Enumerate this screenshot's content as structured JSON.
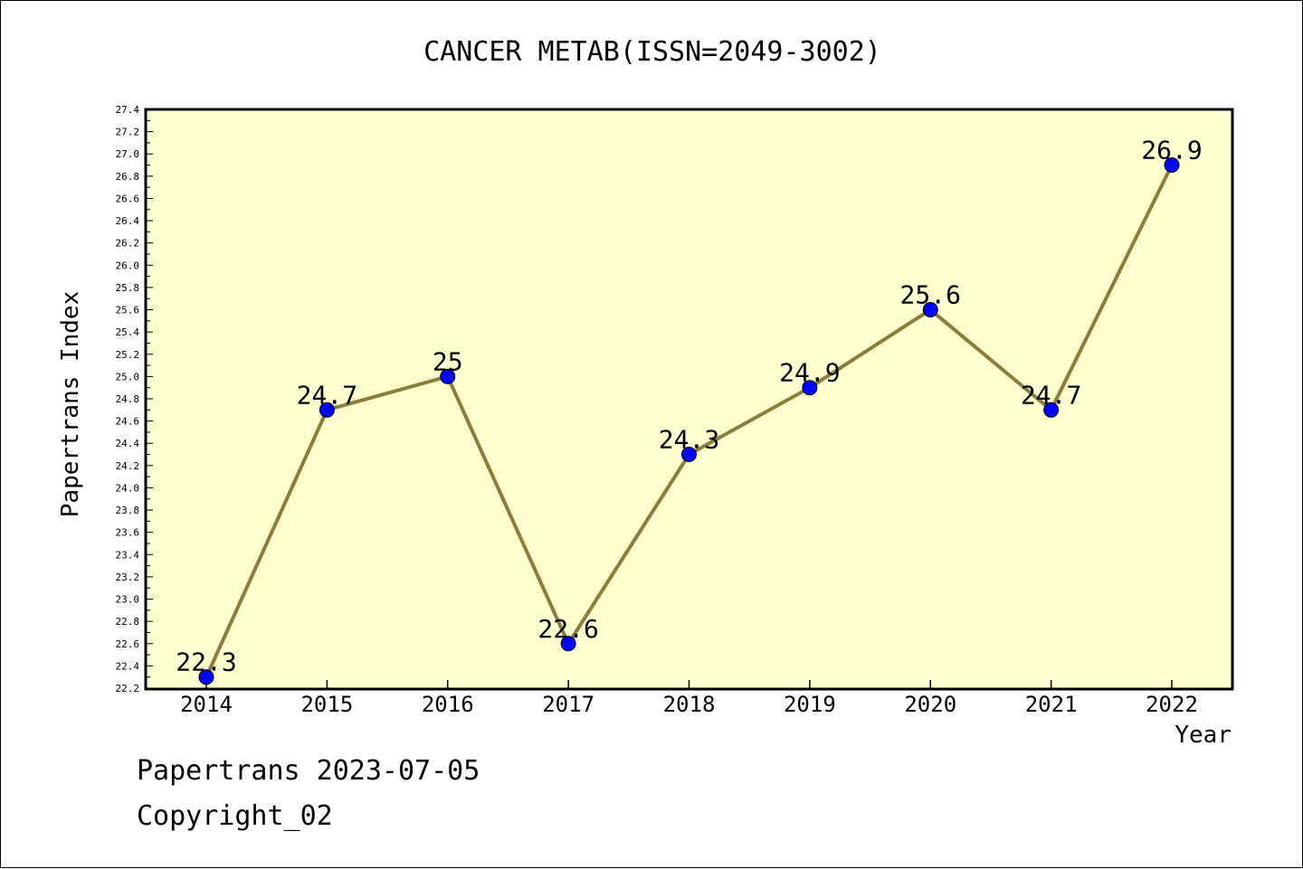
{
  "chart_data": {
    "type": "line",
    "title": "CANCER METAB(ISSN=2049-3002)",
    "xlabel": "Year",
    "ylabel": "Papertrans Index",
    "categories": [
      "2014",
      "2015",
      "2016",
      "2017",
      "2018",
      "2019",
      "2020",
      "2021",
      "2022"
    ],
    "series": [
      {
        "values": [
          22.3,
          24.7,
          25.0,
          22.6,
          24.3,
          24.9,
          25.6,
          24.7,
          26.9
        ]
      }
    ],
    "data_labels": [
      "22.3",
      "24.7",
      "25",
      "22.6",
      "24.3",
      "24.9",
      "25.6",
      "24.7",
      "26.9"
    ],
    "ylim": [
      22.2,
      27.4
    ],
    "yticks": [
      "22.2",
      "22.4",
      "22.6",
      "22.8",
      "23.0",
      "23.2",
      "23.4",
      "23.6",
      "23.8",
      "24.0",
      "24.2",
      "24.4",
      "24.6",
      "24.8",
      "25.0",
      "25.2",
      "25.4",
      "25.6",
      "25.8",
      "26.0",
      "26.2",
      "26.4",
      "26.6",
      "26.8",
      "27.0",
      "27.2",
      "27.4"
    ],
    "grid": false,
    "legend": "none",
    "colors": {
      "plot_background": "#ffffd0",
      "line": "#8b7d3a",
      "marker": "#0000ff"
    }
  },
  "footer": {
    "line1": "Papertrans 2023-07-05",
    "line2": "Copyright_02"
  }
}
